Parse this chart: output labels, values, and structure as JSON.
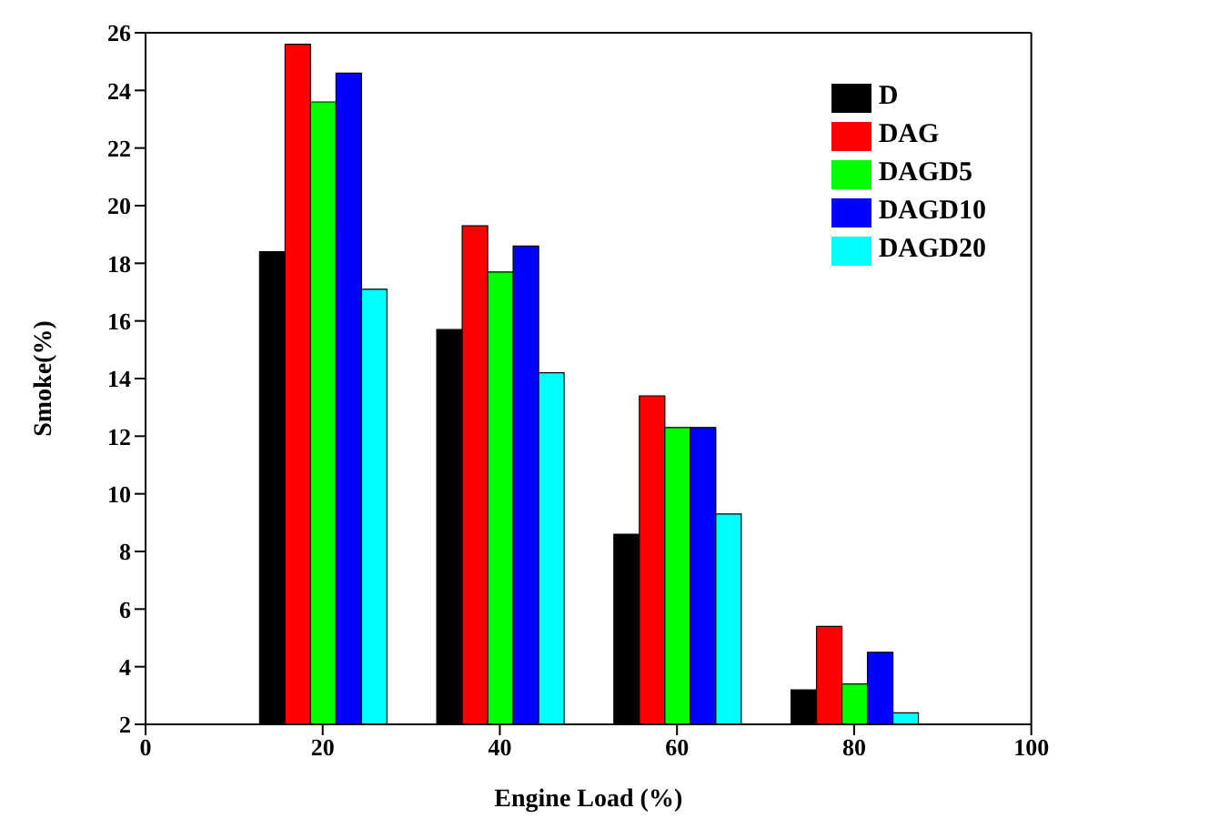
{
  "chart_data": {
    "type": "bar",
    "xlabel": "Engine Load (%)",
    "ylabel": "Smoke(%)",
    "x": [
      20,
      40,
      60,
      80
    ],
    "xlim": [
      0,
      100
    ],
    "xticks": [
      0,
      20,
      40,
      60,
      80,
      100
    ],
    "ylim": [
      2,
      26
    ],
    "yticks": [
      2,
      4,
      6,
      8,
      10,
      12,
      14,
      16,
      18,
      20,
      22,
      24,
      26
    ],
    "series": [
      {
        "name": "D",
        "color": "#000000",
        "values": [
          18.4,
          15.7,
          8.6,
          3.2
        ]
      },
      {
        "name": "DAG",
        "color": "#ff0000",
        "values": [
          25.6,
          19.3,
          13.4,
          5.4
        ]
      },
      {
        "name": "DAGD5",
        "color": "#00ff00",
        "values": [
          23.6,
          17.7,
          12.3,
          3.4
        ]
      },
      {
        "name": "DAGD10",
        "color": "#0000ff",
        "values": [
          24.6,
          18.6,
          12.3,
          4.5
        ]
      },
      {
        "name": "DAGD20",
        "color": "#00ffff",
        "values": [
          17.1,
          14.2,
          9.3,
          2.4
        ]
      }
    ],
    "legend": "top right",
    "grid": false
  }
}
